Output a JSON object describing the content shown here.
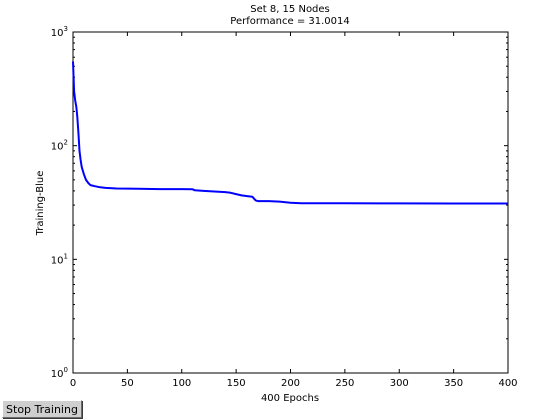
{
  "stop_button_label": "Stop Training",
  "chart_data": {
    "type": "line",
    "title_lines": [
      "Set 8, 15 Nodes",
      "Performance = 31.0014"
    ],
    "xlabel": "400 Epochs",
    "ylabel": "Training-Blue",
    "xlim": [
      0,
      400
    ],
    "ylim": [
      1,
      1000
    ],
    "yscale": "log",
    "grid": false,
    "x_ticks": [
      0,
      50,
      100,
      150,
      200,
      250,
      300,
      350,
      400
    ],
    "y_ticks": [
      {
        "base": "10",
        "exp": "0",
        "value": 1
      },
      {
        "base": "10",
        "exp": "1",
        "value": 10
      },
      {
        "base": "10",
        "exp": "2",
        "value": 100
      },
      {
        "base": "10",
        "exp": "3",
        "value": 1000
      }
    ],
    "series": [
      {
        "color": "#0000ff",
        "x": [
          0,
          1,
          2,
          3,
          4,
          5,
          6,
          7,
          8,
          10,
          12,
          14,
          16,
          20,
          25,
          30,
          40,
          60,
          80,
          100,
          110,
          112,
          120,
          130,
          140,
          145,
          150,
          155,
          160,
          165,
          168,
          170,
          180,
          190,
          200,
          210,
          250,
          300,
          350,
          400
        ],
        "y": [
          550,
          300,
          250,
          220,
          180,
          130,
          90,
          75,
          65,
          56,
          50,
          47,
          45,
          44,
          43,
          42.5,
          42,
          41.8,
          41.5,
          41.5,
          41.3,
          40.5,
          40,
          39.5,
          39,
          38.5,
          37.5,
          36.5,
          36,
          35.5,
          33,
          32.5,
          32.5,
          32.2,
          31.5,
          31.2,
          31.1,
          31.05,
          31.0,
          31.0014
        ]
      }
    ]
  }
}
